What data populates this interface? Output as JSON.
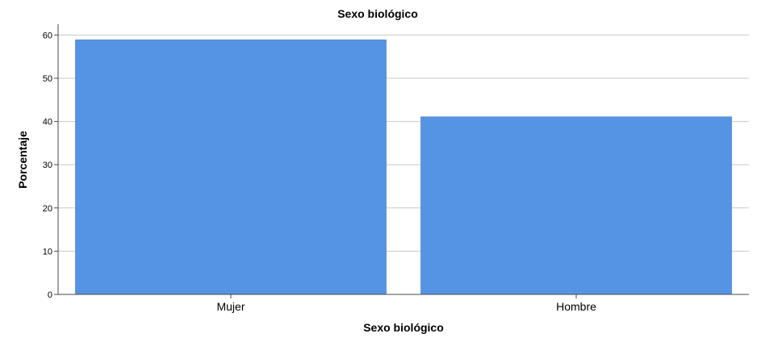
{
  "chart_data": {
    "type": "bar",
    "title": "Sexo biológico",
    "xlabel": "Sexo biológico",
    "ylabel": "Porcentaje",
    "categories": [
      "Mujer",
      "Hombre"
    ],
    "values": [
      58.9,
      41.1
    ],
    "ylim": [
      0,
      62.5
    ],
    "yticks": [
      "0",
      "10",
      "20",
      "30",
      "40",
      "50",
      "60"
    ],
    "grid": true,
    "bar_color": "#5594e4",
    "grid_color": "#c8c8c8"
  }
}
